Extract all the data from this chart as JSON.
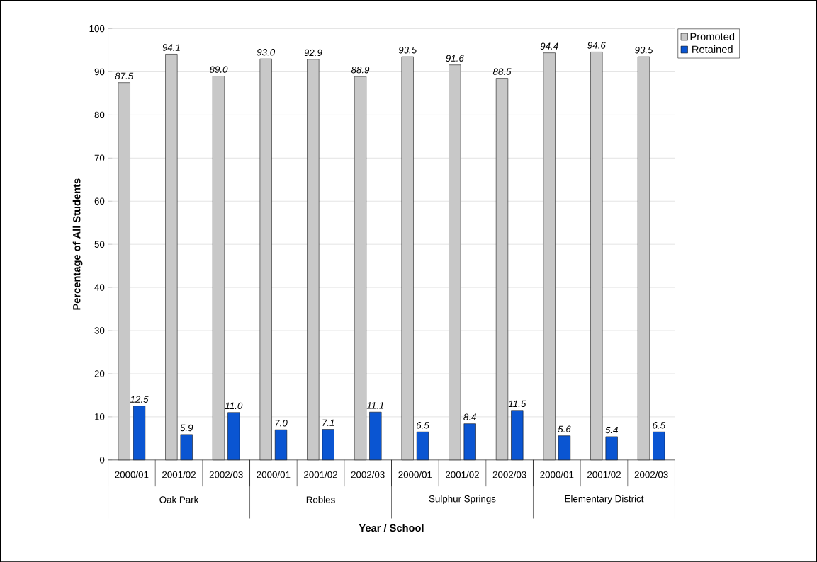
{
  "chart_data": {
    "type": "bar",
    "xlabel": "Year / School",
    "ylabel": "Percentage of All Students",
    "categories": [
      "2000/01",
      "2001/02",
      "2002/03",
      "2000/01",
      "2001/02",
      "2002/03",
      "2000/01",
      "2001/02",
      "2002/03",
      "2000/01",
      "2001/02",
      "2002/03"
    ],
    "annotations": [
      "Oak Park",
      "Robles",
      "Sulphur Springs",
      "Elementary District"
    ],
    "series": [
      {
        "name": "Promoted",
        "color": "#c8c8c8",
        "values": [
          87.5,
          94.1,
          89.0,
          93.0,
          92.9,
          88.9,
          93.5,
          91.6,
          88.5,
          94.4,
          94.6,
          93.5
        ],
        "value_labels": [
          "87.5",
          "94.1",
          "89.0",
          "93.0",
          "92.9",
          "88.9",
          "93.5",
          "91.6",
          "88.5",
          "94.4",
          "94.6",
          "93.5"
        ]
      },
      {
        "name": "Retained",
        "color": "#0a55d2",
        "values": [
          12.5,
          5.9,
          11.0,
          7.0,
          7.1,
          11.1,
          6.5,
          8.4,
          11.5,
          5.6,
          5.4,
          6.5
        ],
        "value_labels": [
          "12.5",
          "5.9",
          "11.0",
          "7.0",
          "7.1",
          "11.1",
          "6.5",
          "8.4",
          "11.5",
          "5.6",
          "5.4",
          "6.5"
        ]
      }
    ],
    "ylim": [
      0,
      100
    ],
    "yticks": [
      0,
      10,
      20,
      30,
      40,
      50,
      60,
      70,
      80,
      90,
      100
    ],
    "grid": "y",
    "legend": "top right"
  }
}
